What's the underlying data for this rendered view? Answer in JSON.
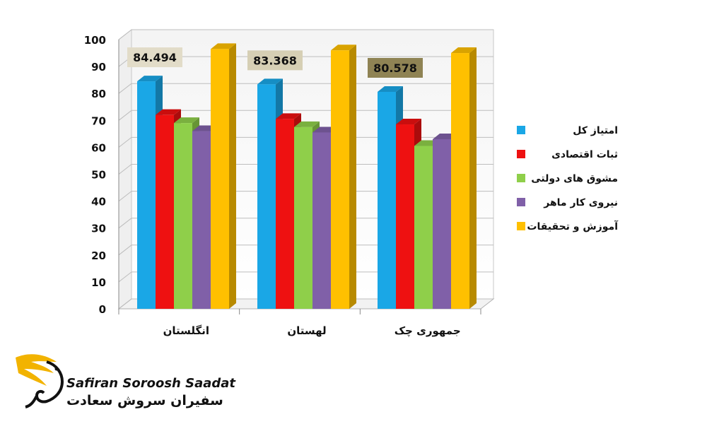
{
  "chart_data": {
    "type": "bar",
    "categories": [
      "انگلستان",
      "لهستان",
      "جمهوری چک"
    ],
    "series": [
      {
        "name": "امتیاز کل",
        "color": "#1aa7e6",
        "values": [
          84.494,
          83.368,
          80.578
        ]
      },
      {
        "name": "ثبات اقتصادی",
        "color": "#ee1111",
        "values": [
          72,
          70.5,
          68.5
        ]
      },
      {
        "name": "مشوق های دولتی",
        "color": "#8fcf4a",
        "values": [
          69,
          67.5,
          60.5
        ]
      },
      {
        "name": "نیروی کار ماهر",
        "color": "#8060a8",
        "values": [
          66,
          65.5,
          63
        ]
      },
      {
        "name": "آموزش و تحقیقات",
        "color": "#ffc000",
        "values": [
          96.5,
          96,
          95
        ]
      }
    ],
    "data_labels": [
      "84.494",
      "83.368",
      "80.578"
    ],
    "ylim": [
      0,
      100
    ],
    "yticks": [
      "0",
      "10",
      "20",
      "30",
      "40",
      "50",
      "60",
      "70",
      "80",
      "90",
      "100"
    ],
    "grid": true,
    "legend_position": "right",
    "title": "",
    "xlabel": "",
    "ylabel": ""
  },
  "logo": {
    "name_en": "Safiran Soroosh Saadat",
    "name_fa": "سفیران سروش سعادت"
  }
}
